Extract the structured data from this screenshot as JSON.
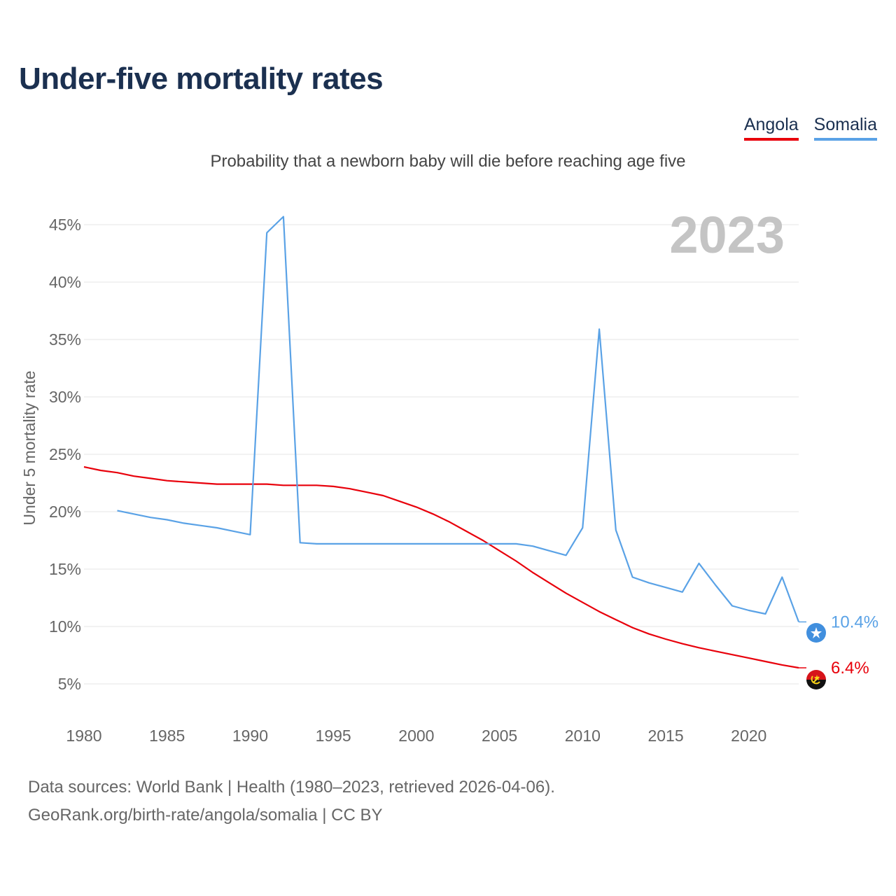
{
  "header": {
    "title": "Under-five mortality rates",
    "subtitle": "Probability that a newborn baby will die before reaching age five"
  },
  "legend": {
    "angola": "Angola",
    "somalia": "Somalia"
  },
  "footer": {
    "line1": "Data sources: World Bank | Health (1980–2023, retrieved 2026-04-06).",
    "line2": "GeoRank.org/birth-rate/angola/somalia | CC BY"
  },
  "chart_data": {
    "type": "line",
    "title": "Under-five mortality rates",
    "subtitle": "Probability that a newborn baby will die before reaching age five",
    "ylabel": "Under 5 mortality rate",
    "xlabel": "",
    "year_display": "2023",
    "xlim": [
      1980,
      2023
    ],
    "ylim": [
      2.5,
      47.5
    ],
    "x_ticks": [
      1980,
      1985,
      1990,
      1995,
      2000,
      2005,
      2010,
      2015,
      2020
    ],
    "y_ticks": [
      5,
      10,
      15,
      20,
      25,
      30,
      35,
      40,
      45
    ],
    "y_tick_labels": [
      "5%",
      "10%",
      "15%",
      "20%",
      "25%",
      "30%",
      "35%",
      "40%",
      "45%"
    ],
    "grid": true,
    "legend_position": "top-right",
    "series": [
      {
        "name": "Angola",
        "color": "#e8000b",
        "end_label": "6.4%",
        "points": [
          [
            1980,
            23.9
          ],
          [
            1981,
            23.6
          ],
          [
            1982,
            23.4
          ],
          [
            1983,
            23.1
          ],
          [
            1984,
            22.9
          ],
          [
            1985,
            22.7
          ],
          [
            1986,
            22.6
          ],
          [
            1987,
            22.5
          ],
          [
            1988,
            22.4
          ],
          [
            1989,
            22.4
          ],
          [
            1990,
            22.4
          ],
          [
            1991,
            22.4
          ],
          [
            1992,
            22.3
          ],
          [
            1993,
            22.3
          ],
          [
            1994,
            22.3
          ],
          [
            1995,
            22.2
          ],
          [
            1996,
            22.0
          ],
          [
            1997,
            21.7
          ],
          [
            1998,
            21.4
          ],
          [
            1999,
            20.9
          ],
          [
            2000,
            20.4
          ],
          [
            2001,
            19.8
          ],
          [
            2002,
            19.1
          ],
          [
            2003,
            18.3
          ],
          [
            2004,
            17.5
          ],
          [
            2005,
            16.6
          ],
          [
            2006,
            15.7
          ],
          [
            2007,
            14.7
          ],
          [
            2008,
            13.8
          ],
          [
            2009,
            12.9
          ],
          [
            2010,
            12.1
          ],
          [
            2011,
            11.3
          ],
          [
            2012,
            10.6
          ],
          [
            2013,
            9.9
          ],
          [
            2014,
            9.35
          ],
          [
            2015,
            8.9
          ],
          [
            2016,
            8.5
          ],
          [
            2017,
            8.15
          ],
          [
            2018,
            7.85
          ],
          [
            2019,
            7.55
          ],
          [
            2020,
            7.25
          ],
          [
            2021,
            6.95
          ],
          [
            2022,
            6.65
          ],
          [
            2023,
            6.4
          ]
        ]
      },
      {
        "name": "Somalia",
        "color": "#5aa2e6",
        "end_label": "10.4%",
        "points": [
          [
            1982,
            20.1
          ],
          [
            1983,
            19.8
          ],
          [
            1984,
            19.5
          ],
          [
            1985,
            19.3
          ],
          [
            1986,
            19.0
          ],
          [
            1987,
            18.8
          ],
          [
            1988,
            18.6
          ],
          [
            1989,
            18.3
          ],
          [
            1990,
            18.0
          ],
          [
            1991,
            44.3
          ],
          [
            1992,
            45.7
          ],
          [
            1993,
            17.3
          ],
          [
            1994,
            17.2
          ],
          [
            1995,
            17.2
          ],
          [
            1996,
            17.2
          ],
          [
            1997,
            17.2
          ],
          [
            1998,
            17.2
          ],
          [
            1999,
            17.2
          ],
          [
            2000,
            17.2
          ],
          [
            2001,
            17.2
          ],
          [
            2002,
            17.2
          ],
          [
            2003,
            17.2
          ],
          [
            2004,
            17.2
          ],
          [
            2005,
            17.2
          ],
          [
            2006,
            17.2
          ],
          [
            2007,
            17.0
          ],
          [
            2008,
            16.6
          ],
          [
            2009,
            16.2
          ],
          [
            2010,
            18.6
          ],
          [
            2011,
            35.9
          ],
          [
            2012,
            18.4
          ],
          [
            2013,
            14.3
          ],
          [
            2014,
            13.8
          ],
          [
            2015,
            13.4
          ],
          [
            2016,
            13.0
          ],
          [
            2017,
            15.5
          ],
          [
            2018,
            13.6
          ],
          [
            2019,
            11.8
          ],
          [
            2020,
            11.4
          ],
          [
            2021,
            11.1
          ],
          [
            2022,
            14.3
          ],
          [
            2023,
            10.4
          ]
        ]
      }
    ]
  }
}
